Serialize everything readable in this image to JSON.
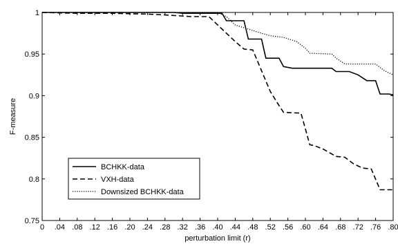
{
  "chart_data": {
    "type": "line",
    "title": "",
    "xlabel": "perturbation limit (r)",
    "ylabel": "F-measure",
    "xlim": [
      0,
      0.8
    ],
    "ylim": [
      0.75,
      1.0
    ],
    "x_ticks": [
      0,
      0.04,
      0.08,
      0.12,
      0.16,
      0.2,
      0.24,
      0.28,
      0.32,
      0.36,
      0.4,
      0.44,
      0.48,
      0.52,
      0.56,
      0.6,
      0.64,
      0.68,
      0.72,
      0.76,
      0.8
    ],
    "x_tick_labels": [
      "0",
      ".04",
      ".08",
      ".12",
      ".16",
      ".20",
      ".24",
      ".28",
      ".32",
      ".36",
      ".40",
      ".44",
      ".48",
      ".52",
      ".56",
      ".60",
      ".64",
      ".68",
      ".72",
      ".76",
      ".80"
    ],
    "y_ticks": [
      0.75,
      0.8,
      0.85,
      0.9,
      0.95,
      1.0
    ],
    "y_tick_labels": [
      "0.75",
      "0.8",
      "0.85",
      "0.9",
      "0.95",
      "1"
    ],
    "grid": false,
    "legend_position": "bottom-left",
    "series": [
      {
        "name": "BCHKK-data",
        "style": "solid",
        "color": "#000000",
        "points": [
          [
            0,
            1.0
          ],
          [
            0.1,
            1.0
          ],
          [
            0.3,
            1.0
          ],
          [
            0.32,
            0.999
          ],
          [
            0.41,
            0.999
          ],
          [
            0.42,
            0.99
          ],
          [
            0.46,
            0.99
          ],
          [
            0.47,
            0.968
          ],
          [
            0.5,
            0.968
          ],
          [
            0.51,
            0.945
          ],
          [
            0.54,
            0.945
          ],
          [
            0.55,
            0.935
          ],
          [
            0.57,
            0.933
          ],
          [
            0.66,
            0.933
          ],
          [
            0.67,
            0.929
          ],
          [
            0.7,
            0.929
          ],
          [
            0.72,
            0.925
          ],
          [
            0.74,
            0.918
          ],
          [
            0.76,
            0.918
          ],
          [
            0.77,
            0.902
          ],
          [
            0.79,
            0.902
          ],
          [
            0.8,
            0.901
          ]
        ]
      },
      {
        "name": "VXH-data",
        "style": "dashed",
        "color": "#000000",
        "points": [
          [
            0,
            1.0
          ],
          [
            0.08,
            0.999
          ],
          [
            0.16,
            0.999
          ],
          [
            0.24,
            0.998
          ],
          [
            0.28,
            0.997
          ],
          [
            0.34,
            0.995
          ],
          [
            0.38,
            0.995
          ],
          [
            0.4,
            0.985
          ],
          [
            0.42,
            0.975
          ],
          [
            0.44,
            0.965
          ],
          [
            0.46,
            0.956
          ],
          [
            0.48,
            0.955
          ],
          [
            0.5,
            0.93
          ],
          [
            0.52,
            0.905
          ],
          [
            0.54,
            0.888
          ],
          [
            0.55,
            0.88
          ],
          [
            0.59,
            0.879
          ],
          [
            0.6,
            0.86
          ],
          [
            0.61,
            0.841
          ],
          [
            0.62,
            0.84
          ],
          [
            0.64,
            0.836
          ],
          [
            0.66,
            0.83
          ],
          [
            0.67,
            0.827
          ],
          [
            0.69,
            0.826
          ],
          [
            0.71,
            0.818
          ],
          [
            0.73,
            0.813
          ],
          [
            0.75,
            0.812
          ],
          [
            0.77,
            0.787
          ],
          [
            0.8,
            0.787
          ]
        ]
      },
      {
        "name": "Downsized BCHKK-data",
        "style": "dotted",
        "color": "#000000",
        "points": [
          [
            0,
            1.0
          ],
          [
            0.38,
            1.0
          ],
          [
            0.4,
            1.0
          ],
          [
            0.42,
            0.995
          ],
          [
            0.44,
            0.985
          ],
          [
            0.47,
            0.98
          ],
          [
            0.5,
            0.975
          ],
          [
            0.52,
            0.972
          ],
          [
            0.55,
            0.97
          ],
          [
            0.58,
            0.965
          ],
          [
            0.6,
            0.957
          ],
          [
            0.61,
            0.951
          ],
          [
            0.66,
            0.95
          ],
          [
            0.67,
            0.945
          ],
          [
            0.69,
            0.938
          ],
          [
            0.76,
            0.938
          ],
          [
            0.78,
            0.93
          ],
          [
            0.8,
            0.925
          ]
        ]
      }
    ]
  }
}
